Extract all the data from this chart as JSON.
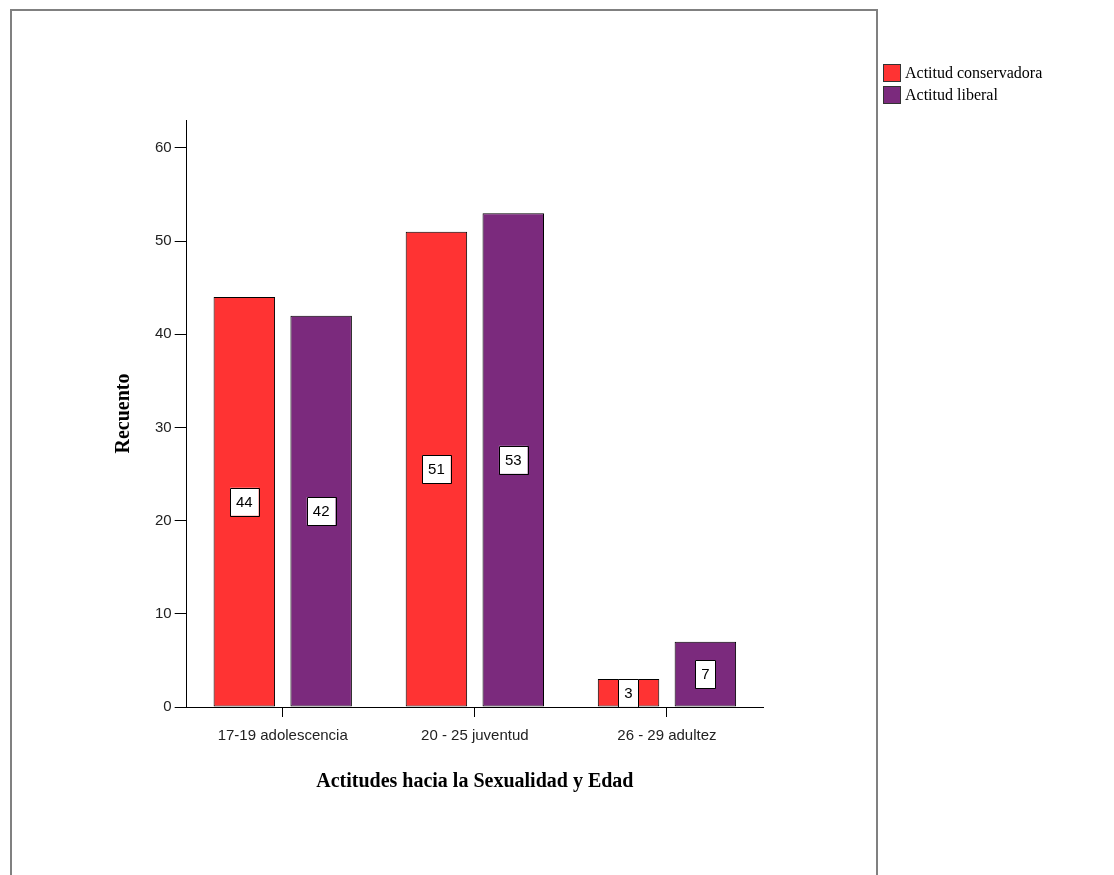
{
  "chart_data": {
    "type": "bar",
    "xlabel": "Actitudes hacia la Sexualidad y Edad",
    "ylabel": "Recuento",
    "categories": [
      "17-19 adolescencia",
      "20 - 25 juventud",
      "26 - 29 adultez"
    ],
    "series": [
      {
        "name": "Actitud conservadora",
        "color": "#ff3333",
        "values": [
          44,
          51,
          3
        ]
      },
      {
        "name": "Actitud liberal",
        "color": "#7b2a7d",
        "values": [
          42,
          53,
          7
        ]
      }
    ],
    "ylim": [
      0,
      63
    ],
    "yticks": [
      0,
      10,
      20,
      30,
      40,
      50,
      60
    ],
    "grid": false,
    "legend": "right",
    "data_labels": true
  }
}
